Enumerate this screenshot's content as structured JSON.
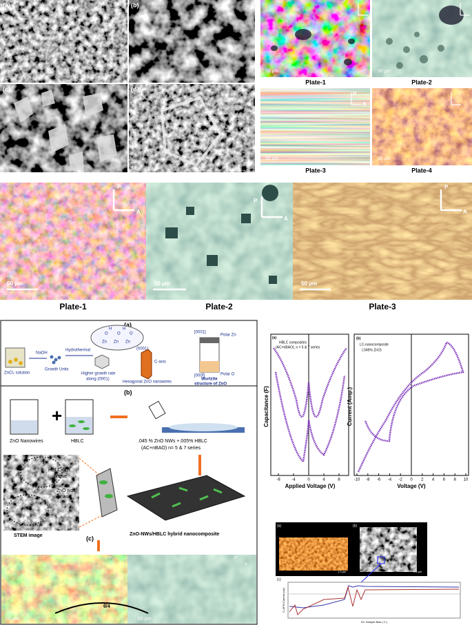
{
  "sem": {
    "panels": [
      "(a)",
      "(b)",
      "(c)",
      "(d)"
    ],
    "scale_bars": [
      "100 nm",
      "1.0 μm"
    ]
  },
  "pom_top": {
    "plates": [
      "Plate-1",
      "Plate-2",
      "Plate-3",
      "Plate-4"
    ],
    "scale_bar": "50 μm",
    "polarizer": "P",
    "analyzer": "A"
  },
  "pom_middle": {
    "plates": [
      "Plate-1",
      "Plate-2",
      "Plate-3"
    ],
    "scale_bar": "50 μm",
    "polarizer": "P",
    "analyzer": "A"
  },
  "schematic": {
    "panel_a": "(a)",
    "zncl2": "ZnCl₂ solution",
    "naoh": "NaOH",
    "hydrothermal": "Hydrothermal",
    "growth_units": "Growth Units",
    "growth_rate": "Higher growth rate",
    "along": "along (0001)",
    "plane": "(0001)",
    "c_axis": "C-axis",
    "nanowires": "Hexagonal ZnO nanowires",
    "top_face": "[0001]",
    "bottom_face": "[000Ī]",
    "polar_zn": "Polar Zn",
    "polar_o": "Polar O",
    "wurtzite": "Wurtzite",
    "wurtzite_2": "structure of ZnO",
    "atom_zn": "Zn",
    "atom_o": "O",
    "atom_h": "H",
    "panel_b": "(b)",
    "zno_nw": "ZnO Nanowires",
    "hblc": "HBLC",
    "mix_1": ".045 % ZnO NWs +.005% HBLC",
    "mix_2": "(AC+nBAO) n= 5 & 7 series",
    "hblc_rich": "HBLC rich",
    "zno_rich": "ZnO rich",
    "phase": "phase",
    "stem": "STEM image",
    "hybrid": "ZnO-NWs/HBLC hybrid nanocomposite",
    "panel_c": "(c)",
    "scale_bar": "50 μm",
    "angle": "θ/4",
    "polarizer": "P",
    "analyzer": "A"
  },
  "capacitance": {
    "panel": "(a)",
    "legend_1": "HBLC composites",
    "legend_2": "(AC+nBAO), n = 5 & 7 series",
    "y_label": "Capacitance (F)",
    "x_label": "Applied Voltage (V)",
    "xticks": [
      "-8",
      "-4",
      "0",
      "4",
      "8"
    ]
  },
  "current": {
    "panel": "(b)",
    "legend_1": "LC-nanocomposite",
    "legend_2": "(.045% ZnO)",
    "y_label": "Current (Amp.)",
    "x_label": "Voltage (V)",
    "xticks": [
      "-10",
      "-8",
      "-6",
      "-4",
      "-2",
      "0",
      "2",
      "4",
      "6",
      "8",
      "10"
    ]
  },
  "afm": {
    "panel_a": "(a)",
    "panel_b": "(b)",
    "panel_c": "(c)",
    "scale_a": "1.0 μm",
    "scale_b": "1.2 μm",
    "y_label": "C-AFM Current (nA)",
    "x_label": "DC Sample Bias ( V )"
  }
}
